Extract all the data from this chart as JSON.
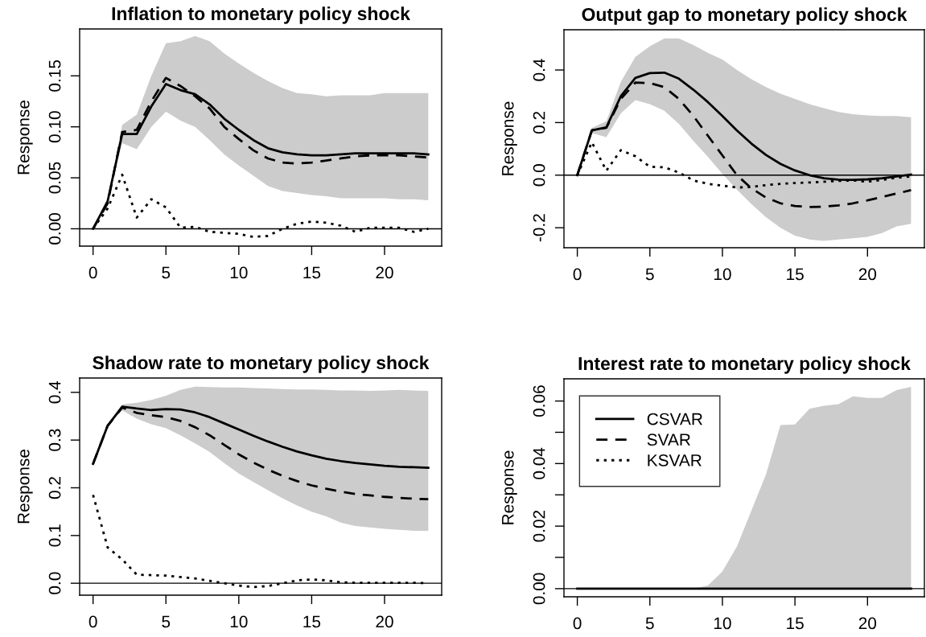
{
  "chart_data": [
    {
      "type": "line",
      "title": "Inflation to monetary policy shock",
      "ylabel": "Response",
      "legend": false,
      "grid": false,
      "x": [
        0,
        1,
        2,
        3,
        4,
        5,
        6,
        7,
        8,
        9,
        10,
        11,
        12,
        13,
        14,
        15,
        16,
        17,
        18,
        19,
        20,
        21,
        22,
        23
      ],
      "xlim": [
        -0.92,
        23.92
      ],
      "xticks": [
        0,
        5,
        10,
        15,
        20
      ],
      "ylim": [
        -0.017,
        0.196
      ],
      "yticks": [
        {
          "value": 0,
          "label": "0.00"
        },
        {
          "value": 0.05,
          "label": "0.05"
        },
        {
          "value": 0.1,
          "label": "0.10"
        },
        {
          "value": 0.15,
          "label": "0.15"
        }
      ],
      "ref_lines": [
        {
          "axis": "y",
          "value": 0,
          "color": "#000000",
          "line_style": "solid"
        }
      ],
      "series": [
        {
          "color": "#000000",
          "line_style": "solid",
          "values": [
            0,
            0.027,
            0.093,
            0.093,
            0.12,
            0.142,
            0.136,
            0.132,
            0.122,
            0.108,
            0.097,
            0.087,
            0.079,
            0.075,
            0.073,
            0.072,
            0.072,
            0.073,
            0.074,
            0.074,
            0.074,
            0.074,
            0.074,
            0.073
          ],
          "lower": [
            0,
            0.027,
            0.084,
            0.078,
            0.1,
            0.115,
            0.106,
            0.1,
            0.087,
            0.073,
            0.062,
            0.052,
            0.042,
            0.037,
            0.035,
            0.033,
            0.032,
            0.03,
            0.03,
            0.03,
            0.03,
            0.029,
            0.029,
            0.028
          ],
          "upper": [
            0,
            0.027,
            0.102,
            0.112,
            0.15,
            0.182,
            0.184,
            0.189,
            0.184,
            0.172,
            0.162,
            0.153,
            0.145,
            0.138,
            0.133,
            0.132,
            0.13,
            0.131,
            0.131,
            0.131,
            0.133,
            0.133,
            0.133,
            0.133
          ]
        },
        {
          "color": "#000000",
          "line_style": "dashed",
          "values": [
            0,
            0.025,
            0.095,
            0.097,
            0.125,
            0.148,
            0.14,
            0.13,
            0.118,
            0.1,
            0.088,
            0.077,
            0.069,
            0.065,
            0.064,
            0.065,
            0.067,
            0.069,
            0.071,
            0.072,
            0.072,
            0.072,
            0.071,
            0.07
          ]
        },
        {
          "color": "#000000",
          "line_style": "dotted",
          "values": [
            0,
            0.02,
            0.053,
            0.011,
            0.029,
            0.021,
            0.001,
            0.002,
            -0.003,
            -0.004,
            -0.005,
            -0.008,
            -0.007,
            0,
            0.005,
            0.007,
            0.006,
            0.003,
            -0.003,
            0.001,
            0.001,
            0.001,
            -0.003,
            0
          ]
        }
      ]
    },
    {
      "type": "line",
      "title": "Output gap to monetary policy shock",
      "ylabel": "Response",
      "legend": false,
      "grid": false,
      "x": [
        0,
        1,
        2,
        3,
        4,
        5,
        6,
        7,
        8,
        9,
        10,
        11,
        12,
        13,
        14,
        15,
        16,
        17,
        18,
        19,
        20,
        21,
        22,
        23
      ],
      "xlim": [
        -0.92,
        23.92
      ],
      "xticks": [
        0,
        5,
        10,
        15,
        20
      ],
      "ylim": [
        -0.276,
        0.553
      ],
      "yticks": [
        {
          "value": -0.2,
          "label": "-0.2"
        },
        {
          "value": 0,
          "label": "0.0"
        },
        {
          "value": 0.2,
          "label": "0.2"
        },
        {
          "value": 0.4,
          "label": "0.4"
        }
      ],
      "ref_lines": [
        {
          "axis": "y",
          "value": 0,
          "color": "#000000",
          "line_style": "solid"
        }
      ],
      "series": [
        {
          "color": "#000000",
          "line_style": "solid",
          "values": [
            0,
            0.17,
            0.182,
            0.3,
            0.37,
            0.388,
            0.39,
            0.367,
            0.325,
            0.278,
            0.225,
            0.17,
            0.12,
            0.077,
            0.043,
            0.018,
            0,
            -0.012,
            -0.017,
            -0.018,
            -0.016,
            -0.012,
            -0.005,
            0.002
          ],
          "lower": [
            0,
            0.16,
            0.145,
            0.235,
            0.285,
            0.27,
            0.245,
            0.195,
            0.13,
            0.07,
            0.005,
            -0.055,
            -0.11,
            -0.16,
            -0.2,
            -0.23,
            -0.245,
            -0.25,
            -0.245,
            -0.24,
            -0.235,
            -0.22,
            -0.195,
            -0.185
          ],
          "upper": [
            0,
            0.18,
            0.205,
            0.355,
            0.45,
            0.49,
            0.52,
            0.52,
            0.495,
            0.465,
            0.44,
            0.4,
            0.365,
            0.335,
            0.31,
            0.29,
            0.27,
            0.255,
            0.24,
            0.232,
            0.227,
            0.225,
            0.225,
            0.22
          ]
        },
        {
          "color": "#000000",
          "line_style": "dashed",
          "values": [
            0,
            0.17,
            0.18,
            0.29,
            0.352,
            0.35,
            0.335,
            0.29,
            0.225,
            0.15,
            0.075,
            0,
            -0.05,
            -0.085,
            -0.107,
            -0.117,
            -0.121,
            -0.12,
            -0.115,
            -0.107,
            -0.096,
            -0.083,
            -0.07,
            -0.057
          ]
        },
        {
          "color": "#000000",
          "line_style": "dotted",
          "values": [
            0,
            0.125,
            0.017,
            0.095,
            0.072,
            0.032,
            0.03,
            0.01,
            -0.02,
            -0.033,
            -0.04,
            -0.047,
            -0.045,
            -0.038,
            -0.033,
            -0.03,
            -0.028,
            -0.025,
            -0.022,
            -0.02,
            -0.025,
            -0.018,
            -0.01,
            -0.005
          ]
        }
      ]
    },
    {
      "type": "line",
      "title": "Shadow rate to monetary policy shock",
      "ylabel": "Response",
      "legend": false,
      "grid": false,
      "x": [
        0,
        1,
        2,
        3,
        4,
        5,
        6,
        7,
        8,
        9,
        10,
        11,
        12,
        13,
        14,
        15,
        16,
        17,
        18,
        19,
        20,
        21,
        22,
        23
      ],
      "xlim": [
        -0.92,
        23.92
      ],
      "xticks": [
        0,
        5,
        10,
        15,
        20
      ],
      "ylim": [
        -0.025,
        0.43
      ],
      "yticks": [
        {
          "value": 0,
          "label": "0.0"
        },
        {
          "value": 0.1,
          "label": "0.1"
        },
        {
          "value": 0.2,
          "label": "0.2"
        },
        {
          "value": 0.3,
          "label": "0.3"
        },
        {
          "value": 0.4,
          "label": "0.4"
        }
      ],
      "ref_lines": [
        {
          "axis": "y",
          "value": 0,
          "color": "#000000",
          "line_style": "solid"
        }
      ],
      "series": [
        {
          "color": "#000000",
          "line_style": "solid",
          "values": [
            0.25,
            0.33,
            0.37,
            0.366,
            0.363,
            0.365,
            0.364,
            0.358,
            0.348,
            0.335,
            0.322,
            0.309,
            0.297,
            0.286,
            0.276,
            0.268,
            0.261,
            0.256,
            0.252,
            0.249,
            0.246,
            0.244,
            0.243,
            0.242
          ],
          "lower": [
            0.25,
            0.33,
            0.362,
            0.345,
            0.333,
            0.325,
            0.31,
            0.293,
            0.275,
            0.252,
            0.23,
            0.212,
            0.195,
            0.178,
            0.163,
            0.15,
            0.14,
            0.127,
            0.12,
            0.117,
            0.114,
            0.112,
            0.11,
            0.11
          ],
          "upper": [
            0.25,
            0.33,
            0.375,
            0.378,
            0.384,
            0.393,
            0.405,
            0.412,
            0.411,
            0.41,
            0.41,
            0.409,
            0.408,
            0.407,
            0.406,
            0.406,
            0.405,
            0.404,
            0.404,
            0.403,
            0.404,
            0.405,
            0.404,
            0.403
          ]
        },
        {
          "color": "#000000",
          "line_style": "dashed",
          "values": [
            0.25,
            0.33,
            0.368,
            0.357,
            0.352,
            0.348,
            0.34,
            0.327,
            0.31,
            0.29,
            0.27,
            0.253,
            0.238,
            0.225,
            0.214,
            0.205,
            0.198,
            0.192,
            0.187,
            0.184,
            0.181,
            0.179,
            0.177,
            0.176
          ]
        },
        {
          "color": "#000000",
          "line_style": "dotted",
          "values": [
            0.185,
            0.075,
            0.05,
            0.018,
            0.017,
            0.016,
            0.013,
            0.01,
            0.005,
            0,
            -0.005,
            -0.008,
            -0.006,
            0,
            0.006,
            0.008,
            0.006,
            0.002,
            0.001,
            0.001,
            0.001,
            0.001,
            0.001,
            0
          ]
        }
      ]
    },
    {
      "type": "line",
      "title": "Interest rate to monetary policy shock",
      "ylabel": "Response",
      "legend": "top left",
      "grid": false,
      "x": [
        0,
        1,
        2,
        3,
        4,
        5,
        6,
        7,
        8,
        9,
        10,
        11,
        12,
        13,
        14,
        15,
        16,
        17,
        18,
        19,
        20,
        21,
        22,
        23
      ],
      "xlim": [
        -0.92,
        23.92
      ],
      "xticks": [
        0,
        5,
        10,
        15,
        20
      ],
      "ylim": [
        -0.0026,
        0.0671
      ],
      "yticks": [
        {
          "value": 0,
          "label": "0.00"
        },
        {
          "value": 0.01,
          "label": null
        },
        {
          "value": 0.02,
          "label": "0.02"
        },
        {
          "value": 0.03,
          "label": null
        },
        {
          "value": 0.04,
          "label": "0.04"
        },
        {
          "value": 0.05,
          "label": null
        },
        {
          "value": 0.06,
          "label": "0.06"
        }
      ],
      "ref_lines": [
        {
          "axis": "y",
          "value": 0,
          "color": "#000000",
          "line_style": "solid"
        }
      ],
      "series": [
        {
          "name": "CSVAR",
          "color": "#000000",
          "line_style": "solid",
          "values": [
            0,
            0,
            0,
            0,
            0,
            0,
            0,
            0,
            0,
            0,
            0,
            0,
            0,
            0,
            0,
            0,
            0,
            0,
            0,
            0,
            0,
            0,
            0,
            0
          ],
          "lower": [
            0,
            0,
            0,
            0,
            0,
            0,
            0,
            0,
            0,
            0,
            0,
            0,
            0,
            0,
            0,
            0,
            0,
            0,
            0,
            0,
            0,
            0,
            0,
            0
          ],
          "upper": [
            0,
            0,
            0,
            0,
            0,
            0,
            0,
            0,
            0,
            0.001,
            0.0055,
            0.0135,
            0.025,
            0.0365,
            0.0523,
            0.0525,
            0.0575,
            0.0585,
            0.059,
            0.0615,
            0.061,
            0.061,
            0.0635,
            0.0645
          ]
        },
        {
          "name": "SVAR",
          "color": "#000000",
          "line_style": "dashed",
          "values": [
            null,
            null,
            null,
            null,
            null,
            null,
            null,
            null,
            null,
            null,
            null,
            null,
            null,
            null,
            null,
            null,
            null,
            null,
            null,
            null,
            null,
            null,
            null,
            null
          ]
        },
        {
          "name": "KSVAR",
          "color": "#000000",
          "line_style": "dotted",
          "values": [
            null,
            null,
            null,
            null,
            null,
            null,
            null,
            null,
            null,
            null,
            null,
            null,
            null,
            null,
            null,
            null,
            null,
            null,
            null,
            null,
            null,
            null,
            null,
            null
          ]
        }
      ]
    }
  ]
}
